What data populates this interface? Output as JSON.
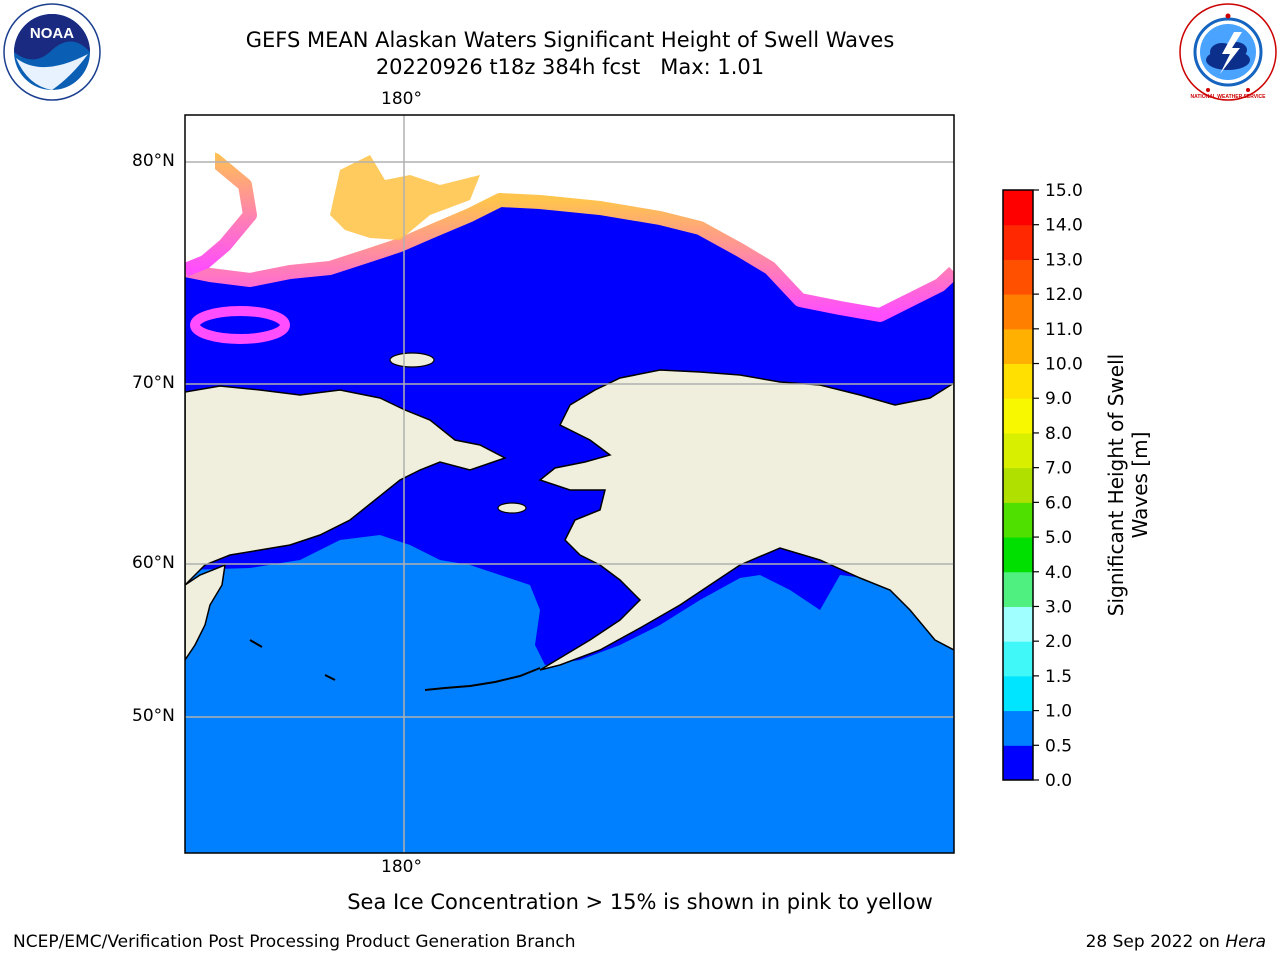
{
  "header": {
    "title_line1": "GEFS MEAN Alaskan Waters Significant Height of Swell Waves",
    "title_line2": "20220926 t18z 384h fcst   Max: 1.01"
  },
  "logos": {
    "left": {
      "icon": "noaa-logo",
      "text": "NOAA"
    },
    "right": {
      "icon": "nws-logo",
      "text": "NATIONAL WEATHER SERVICE"
    }
  },
  "map": {
    "lon_top_label": "180°",
    "lon_bottom_label": "180°",
    "lat_labels": [
      "80°N",
      "70°N",
      "60°N",
      "50°N"
    ],
    "colors": {
      "ocean_low": "#0000FF",
      "ocean_mid": "#0080FF",
      "land": "#F0EEDC",
      "ice_pink": "#FF4DFF",
      "ice_yellow": "#FFC44D"
    }
  },
  "colorbar": {
    "label_line1": "Significant Height of Swell",
    "label_line2": "Waves [m]",
    "ticks": [
      "0.0",
      "0.5",
      "1.0",
      "1.5",
      "2.0",
      "3.0",
      "4.0",
      "5.0",
      "6.0",
      "7.0",
      "8.0",
      "9.0",
      "10.0",
      "11.0",
      "12.0",
      "13.0",
      "14.0",
      "15.0"
    ],
    "colors": [
      "#0000FF",
      "#0080FF",
      "#00E5FF",
      "#40F8F8",
      "#A0FFFF",
      "#50F080",
      "#00E000",
      "#50E000",
      "#B0E000",
      "#D8F000",
      "#F8F800",
      "#FFE000",
      "#FFB000",
      "#FF8000",
      "#FF5000",
      "#FF2800",
      "#FF0000"
    ]
  },
  "footer": {
    "note": "Sea Ice Concentration > 15% is shown in pink to yellow",
    "left": "NCEP/EMC/Verification Post Processing Product Generation Branch",
    "right_date": "28 Sep 2022 on ",
    "right_host": "Hera"
  }
}
